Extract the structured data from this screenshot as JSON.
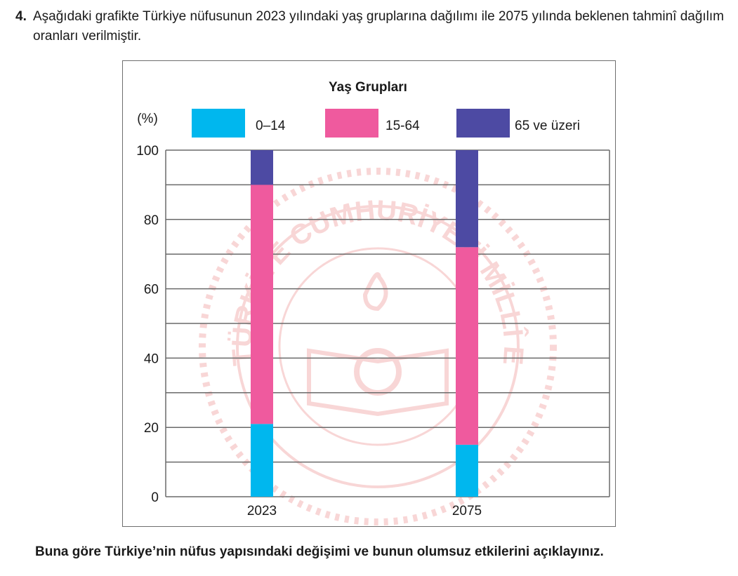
{
  "question": {
    "number": "4.",
    "text": "Aşağıdaki grafikte Türkiye nüfusunun 2023 yılındaki yaş gruplarına dağılımı ile 2075 yılında beklenen tahminî dağılım oranları verilmiştir."
  },
  "footer": {
    "text": "Buna göre Türkiye’nin nüfus yapısındaki değişimi ve bunun olumsuz etkilerini açıklayınız."
  },
  "chart_data": {
    "type": "bar",
    "stacked": true,
    "title": "Yaş Grupları",
    "ylabel": "(%)",
    "xlabel": "",
    "categories": [
      "2023",
      "2075"
    ],
    "series": [
      {
        "name": "0–14",
        "values": [
          21,
          15
        ],
        "color": "#00b7ee"
      },
      {
        "name": "15-64",
        "values": [
          69,
          57
        ],
        "color": "#ef5a9e"
      },
      {
        "name": "65 ve üzeri",
        "values": [
          10,
          28
        ],
        "color": "#4d4aa3"
      }
    ],
    "ylim": [
      0,
      100
    ],
    "yticks": [
      0,
      20,
      40,
      60,
      80,
      100
    ],
    "grid": true,
    "legend_position": "top"
  },
  "watermark": {
    "description_icon": "meb-seal-watermark",
    "text": "TÜRKİYE CUMHURİYETİ MİLLÎ EĞİTİM BAKANLIĞI"
  }
}
